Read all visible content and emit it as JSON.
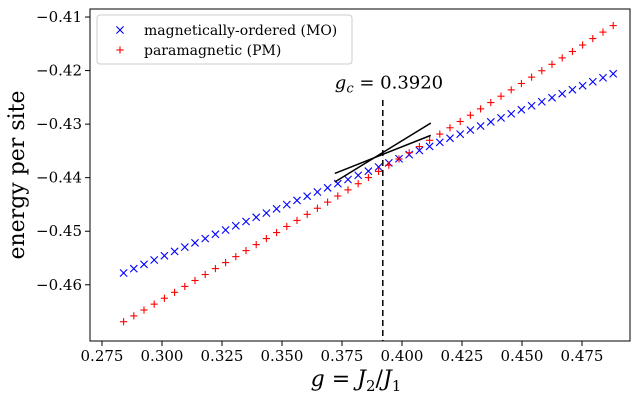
{
  "chart_data": {
    "type": "scatter",
    "title": "",
    "xlabel": "g = J2/J1",
    "xlabel_parts": {
      "g": "g",
      "eq": " = ",
      "j2": "J",
      "j2_sub": "2",
      "slash": "/",
      "j1": "J",
      "j1_sub": "1"
    },
    "ylabel": "energy per site",
    "xlim": [
      0.27,
      0.495
    ],
    "ylim": [
      -0.4705,
      -0.4085
    ],
    "xticks": [
      0.275,
      0.3,
      0.325,
      0.35,
      0.375,
      0.4,
      0.425,
      0.45,
      0.475
    ],
    "xtick_labels": [
      "0.275",
      "0.300",
      "0.325",
      "0.350",
      "0.375",
      "0.400",
      "0.425",
      "0.450",
      "0.475"
    ],
    "yticks": [
      -0.41,
      -0.42,
      -0.43,
      -0.44,
      -0.45,
      -0.46
    ],
    "ytick_labels": [
      "−0.41",
      "−0.42",
      "−0.43",
      "−0.44",
      "−0.45",
      "−0.46"
    ],
    "grid": false,
    "legend_position": "top-left",
    "series": [
      {
        "name": "magnetically-ordered (MO)",
        "marker": "x",
        "color": "#0000ff",
        "x_start": 0.284,
        "x_end": 0.488,
        "n_points": 49,
        "y_at_start": -0.4578,
        "y_at_end": -0.4206,
        "curvature": -0.04
      },
      {
        "name": "paramagnetic (PM)",
        "marker": "+",
        "color": "#ff0000",
        "x_start": 0.284,
        "x_end": 0.488,
        "n_points": 49,
        "y_at_start": -0.4669,
        "y_at_end": -0.4116,
        "curvature": 0.07
      }
    ],
    "fit_lines": [
      {
        "color": "#000000",
        "x": [
          0.372,
          0.412
        ],
        "y": [
          -0.4392,
          -0.4321
        ]
      },
      {
        "color": "#000000",
        "x": [
          0.372,
          0.412
        ],
        "y": [
          -0.4408,
          -0.4298
        ]
      }
    ],
    "critical_line": {
      "x": 0.392,
      "style": "dashed",
      "color": "#000000"
    },
    "annotation": {
      "var": "g",
      "sub": "c",
      "eq": " = ",
      "value": "0.3920",
      "x": 0.392,
      "y": -0.4233
    }
  }
}
